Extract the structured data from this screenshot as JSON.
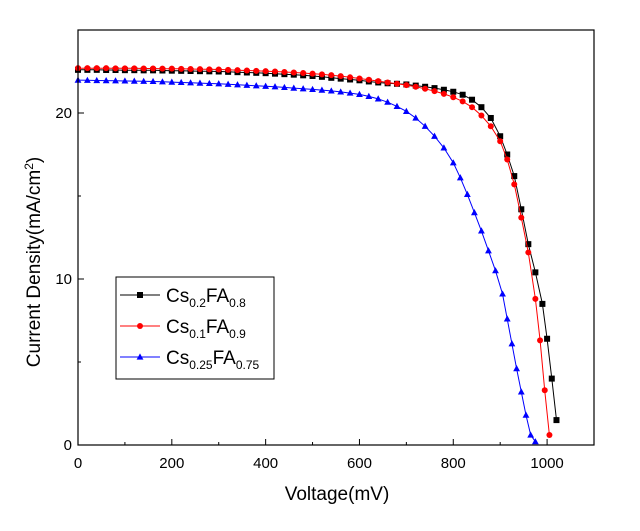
{
  "chart_data": {
    "type": "line",
    "title": "",
    "xlabel": "Voltage(mV)",
    "ylabel_parts": [
      "Current Density(mA/cm",
      "2",
      ")"
    ],
    "xlim": [
      0,
      1100
    ],
    "ylim": [
      0,
      25
    ],
    "x_ticks": [
      0,
      200,
      400,
      600,
      800,
      1000
    ],
    "y_ticks": [
      0,
      10,
      20
    ],
    "x_tick_labels": [
      "0",
      "200",
      "400",
      "600",
      "800",
      "1000"
    ],
    "y_tick_labels": [
      "0",
      "10",
      "20"
    ],
    "legend_position": "bottom-left",
    "series": [
      {
        "name": "Cs0.2FA0.8",
        "legend": [
          {
            "t": "Cs",
            "sub": false
          },
          {
            "t": "0.2",
            "sub": true
          },
          {
            "t": "FA",
            "sub": false
          },
          {
            "t": "0.8",
            "sub": true
          }
        ],
        "color": "#000000",
        "marker": "square",
        "x": [
          0,
          20,
          40,
          60,
          80,
          100,
          120,
          140,
          160,
          180,
          200,
          220,
          240,
          260,
          280,
          300,
          320,
          340,
          360,
          380,
          400,
          420,
          440,
          460,
          480,
          500,
          520,
          540,
          560,
          580,
          600,
          620,
          640,
          660,
          680,
          700,
          720,
          740,
          760,
          780,
          800,
          820,
          840,
          860,
          880,
          900,
          915,
          930,
          945,
          960,
          975,
          990,
          1000,
          1010,
          1020
        ],
        "y": [
          22.6,
          22.6,
          22.6,
          22.59,
          22.59,
          22.58,
          22.58,
          22.57,
          22.57,
          22.56,
          22.55,
          22.54,
          22.53,
          22.52,
          22.51,
          22.5,
          22.48,
          22.46,
          22.44,
          22.42,
          22.4,
          22.37,
          22.34,
          22.31,
          22.27,
          22.23,
          22.18,
          22.12,
          22.07,
          22.02,
          21.97,
          21.9,
          21.84,
          21.79,
          21.76,
          21.72,
          21.65,
          21.58,
          21.5,
          21.4,
          21.28,
          21.1,
          20.8,
          20.35,
          19.7,
          18.6,
          17.5,
          16.2,
          14.2,
          12.1,
          10.4,
          8.5,
          6.4,
          4.0,
          1.5
        ]
      },
      {
        "name": "Cs0.1FA0.9",
        "legend": [
          {
            "t": "Cs",
            "sub": false
          },
          {
            "t": "0.1",
            "sub": true
          },
          {
            "t": "FA",
            "sub": false
          },
          {
            "t": "0.9",
            "sub": true
          }
        ],
        "color": "#ff0000",
        "marker": "circle",
        "x": [
          0,
          20,
          40,
          60,
          80,
          100,
          120,
          140,
          160,
          180,
          200,
          220,
          240,
          260,
          280,
          300,
          320,
          340,
          360,
          380,
          400,
          420,
          440,
          460,
          480,
          500,
          520,
          540,
          560,
          580,
          600,
          620,
          640,
          660,
          680,
          700,
          720,
          740,
          760,
          780,
          800,
          820,
          840,
          860,
          880,
          900,
          915,
          930,
          945,
          960,
          975,
          985,
          995,
          1005
        ],
        "y": [
          22.7,
          22.7,
          22.7,
          22.7,
          22.69,
          22.69,
          22.69,
          22.68,
          22.68,
          22.67,
          22.67,
          22.66,
          22.65,
          22.64,
          22.63,
          22.62,
          22.6,
          22.58,
          22.56,
          22.54,
          22.52,
          22.5,
          22.47,
          22.44,
          22.41,
          22.37,
          22.33,
          22.28,
          22.22,
          22.15,
          22.08,
          22.0,
          21.92,
          21.84,
          21.76,
          21.68,
          21.58,
          21.46,
          21.32,
          21.15,
          20.95,
          20.7,
          20.35,
          19.85,
          19.2,
          18.3,
          17.2,
          15.7,
          13.7,
          11.6,
          8.8,
          6.3,
          3.3,
          0.6
        ]
      },
      {
        "name": "Cs0.25FA0.75",
        "legend": [
          {
            "t": "Cs",
            "sub": false
          },
          {
            "t": "0.25",
            "sub": true
          },
          {
            "t": "FA",
            "sub": false
          },
          {
            "t": "0.75",
            "sub": true
          }
        ],
        "color": "#0000ff",
        "marker": "triangle",
        "x": [
          0,
          20,
          40,
          60,
          80,
          100,
          120,
          140,
          160,
          180,
          200,
          220,
          240,
          260,
          280,
          300,
          320,
          340,
          360,
          380,
          400,
          420,
          440,
          460,
          480,
          500,
          520,
          540,
          560,
          580,
          600,
          620,
          640,
          660,
          680,
          700,
          720,
          740,
          760,
          780,
          800,
          815,
          830,
          845,
          860,
          875,
          890,
          905,
          915,
          925,
          935,
          945,
          955,
          965,
          975
        ],
        "y": [
          21.98,
          21.97,
          21.96,
          21.95,
          21.94,
          21.93,
          21.92,
          21.91,
          21.9,
          21.88,
          21.86,
          21.84,
          21.82,
          21.8,
          21.78,
          21.76,
          21.73,
          21.7,
          21.67,
          21.64,
          21.61,
          21.58,
          21.54,
          21.5,
          21.46,
          21.42,
          21.38,
          21.33,
          21.27,
          21.2,
          21.12,
          21.0,
          20.85,
          20.65,
          20.4,
          20.1,
          19.7,
          19.2,
          18.6,
          17.9,
          17.0,
          16.1,
          15.1,
          14.0,
          12.9,
          11.7,
          10.5,
          9.1,
          7.6,
          6.1,
          4.6,
          3.2,
          1.8,
          0.6,
          0.2
        ]
      }
    ]
  }
}
